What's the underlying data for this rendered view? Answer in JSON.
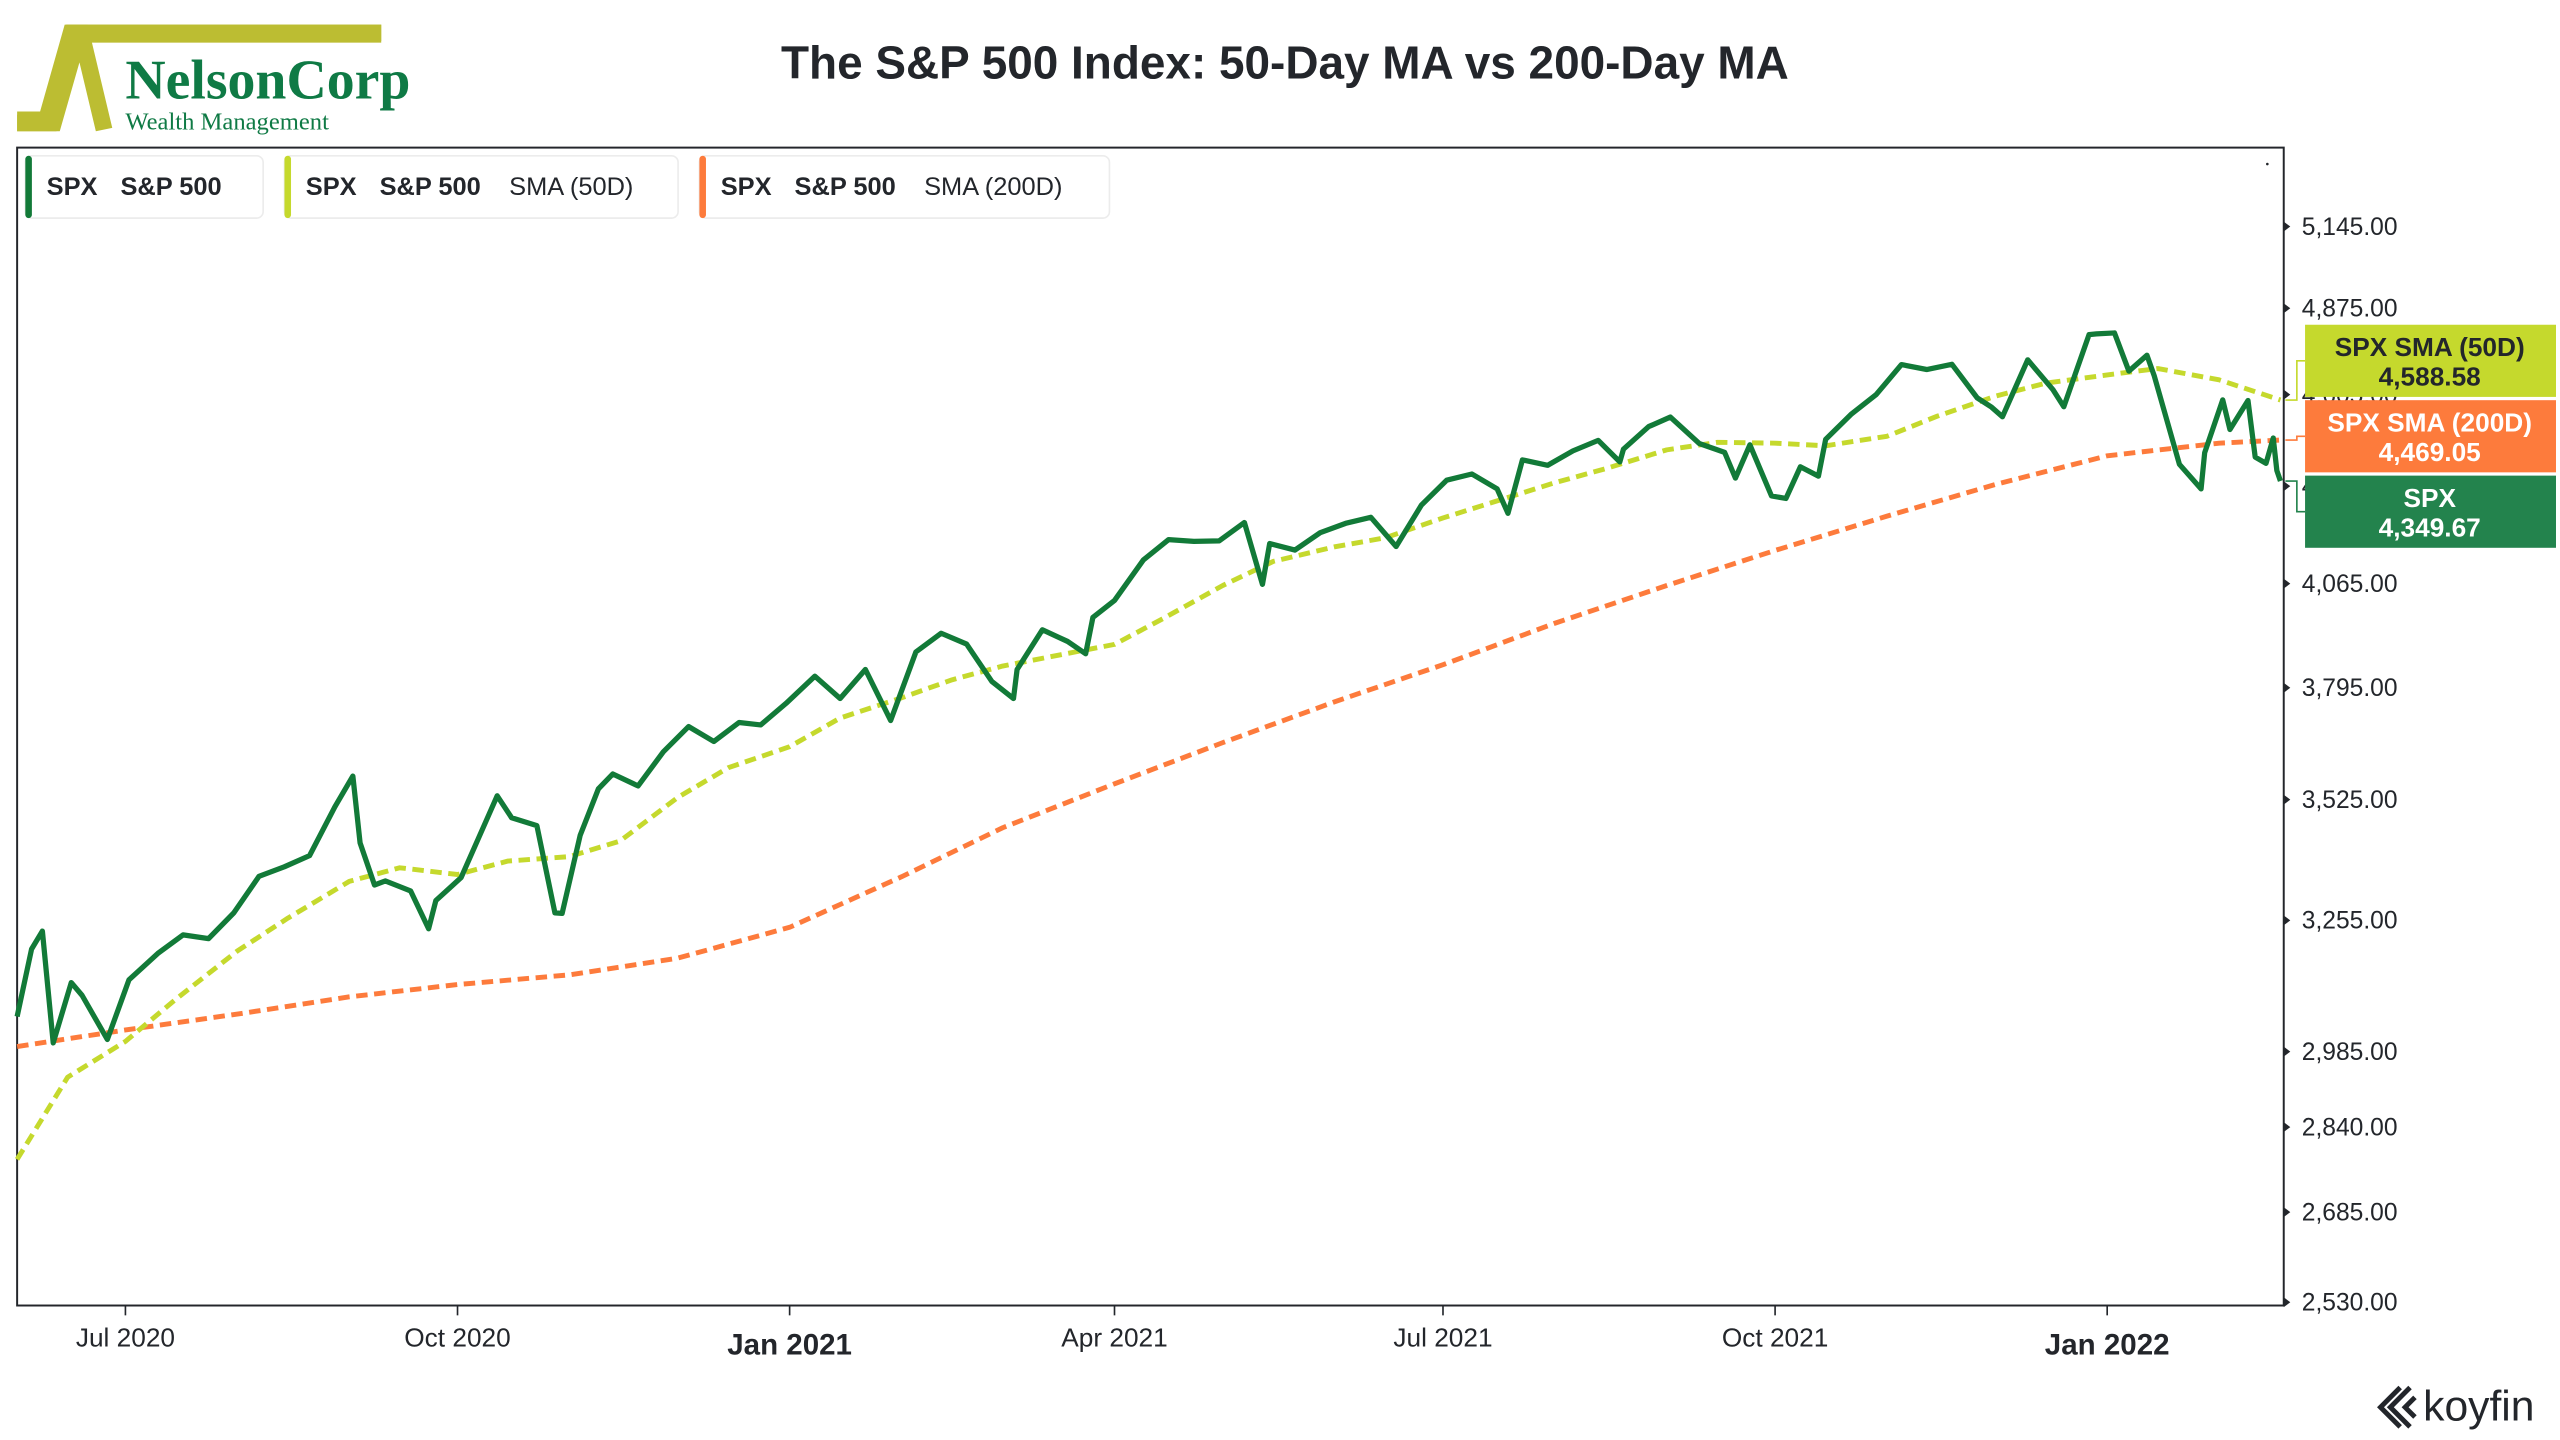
{
  "header": {
    "title": "The S&P 500 Index: 50-Day MA vs 200-Day MA",
    "logo_name": "NelsonCorp",
    "logo_tagline": "Wealth Management",
    "watermark": "koyfin"
  },
  "colors": {
    "spx": "#127a38",
    "sma50": "#c5d92d",
    "sma200": "#fd7b3c",
    "logo_olive": "#bcbd32",
    "logo_green": "#0f7a45"
  },
  "legend": [
    {
      "ticker": "SPX",
      "name": "S&P 500",
      "study": "",
      "color": "#127a38"
    },
    {
      "ticker": "SPX",
      "name": "S&P 500",
      "study": "SMA (50D)",
      "color": "#c5d92d"
    },
    {
      "ticker": "SPX",
      "name": "S&P 500",
      "study": "SMA (200D)",
      "color": "#fd7b3c"
    }
  ],
  "last_values": [
    {
      "label": "SPX SMA (50D)",
      "value": "4,588.58",
      "color": "#c5d92d",
      "text_color": "#23262b"
    },
    {
      "label": "SPX SMA (200D)",
      "value": "4,469.05",
      "color": "#fd7b3c",
      "text_color": "#ffffff"
    },
    {
      "label": "SPX",
      "value": "4,349.67",
      "color": "#23834d",
      "text_color": "#ffffff"
    }
  ],
  "chart_data": {
    "type": "line",
    "title": "The S&P 500 Index: 50-Day MA vs 200-Day MA",
    "y_scale": "log",
    "ylim": [
      2530,
      5400
    ],
    "xlim": [
      "2020-06-01",
      "2022-02-18"
    ],
    "y_ticks": [
      "2,530.00",
      "2,685.00",
      "2,840.00",
      "2,985.00",
      "3,255.00",
      "3,525.00",
      "3,795.00",
      "4,065.00",
      "4,335.00",
      "4,605.00",
      "4,875.00",
      "5,145.00"
    ],
    "x_ticks": [
      {
        "date": "2020-07-01",
        "label": "Jul 2020",
        "bold": false
      },
      {
        "date": "2020-10-01",
        "label": "Oct 2020",
        "bold": false
      },
      {
        "date": "2021-01-01",
        "label": "Jan 2021",
        "bold": true
      },
      {
        "date": "2021-04-01",
        "label": "Apr 2021",
        "bold": false
      },
      {
        "date": "2021-07-01",
        "label": "Jul 2021",
        "bold": false
      },
      {
        "date": "2021-10-01",
        "label": "Oct 2021",
        "bold": false
      },
      {
        "date": "2022-01-01",
        "label": "Jan 2022",
        "bold": true
      }
    ],
    "grid": false,
    "legend_position": "top-left",
    "series": [
      {
        "name": "SPX S&P 500",
        "style": "solid",
        "color": "#127a38",
        "points": [
          [
            "2020-06-01",
            3055
          ],
          [
            "2020-06-05",
            3194
          ],
          [
            "2020-06-08",
            3232
          ],
          [
            "2020-06-11",
            3002
          ],
          [
            "2020-06-16",
            3124
          ],
          [
            "2020-06-19",
            3098
          ],
          [
            "2020-06-26",
            3009
          ],
          [
            "2020-07-02",
            3130
          ],
          [
            "2020-07-10",
            3185
          ],
          [
            "2020-07-17",
            3224
          ],
          [
            "2020-07-24",
            3216
          ],
          [
            "2020-07-31",
            3271
          ],
          [
            "2020-08-07",
            3351
          ],
          [
            "2020-08-14",
            3372
          ],
          [
            "2020-08-21",
            3397
          ],
          [
            "2020-08-28",
            3508
          ],
          [
            "2020-09-02",
            3580
          ],
          [
            "2020-09-04",
            3426
          ],
          [
            "2020-09-08",
            3332
          ],
          [
            "2020-09-11",
            3341
          ],
          [
            "2020-09-18",
            3319
          ],
          [
            "2020-09-23",
            3237
          ],
          [
            "2020-09-25",
            3298
          ],
          [
            "2020-10-02",
            3348
          ],
          [
            "2020-10-09",
            3477
          ],
          [
            "2020-10-12",
            3534
          ],
          [
            "2020-10-16",
            3483
          ],
          [
            "2020-10-23",
            3465
          ],
          [
            "2020-10-28",
            3271
          ],
          [
            "2020-10-30",
            3270
          ],
          [
            "2020-11-04",
            3443
          ],
          [
            "2020-11-09",
            3550
          ],
          [
            "2020-11-13",
            3585
          ],
          [
            "2020-11-20",
            3557
          ],
          [
            "2020-11-27",
            3638
          ],
          [
            "2020-12-04",
            3699
          ],
          [
            "2020-12-11",
            3663
          ],
          [
            "2020-12-18",
            3709
          ],
          [
            "2020-12-24",
            3703
          ],
          [
            "2020-12-31",
            3756
          ],
          [
            "2021-01-08",
            3824
          ],
          [
            "2021-01-15",
            3768
          ],
          [
            "2021-01-22",
            3841
          ],
          [
            "2021-01-29",
            3714
          ],
          [
            "2021-02-05",
            3886
          ],
          [
            "2021-02-12",
            3934
          ],
          [
            "2021-02-19",
            3906
          ],
          [
            "2021-02-26",
            3811
          ],
          [
            "2021-03-04",
            3768
          ],
          [
            "2021-03-05",
            3841
          ],
          [
            "2021-03-12",
            3943
          ],
          [
            "2021-03-19",
            3913
          ],
          [
            "2021-03-24",
            3881
          ],
          [
            "2021-03-26",
            3975
          ],
          [
            "2021-04-01",
            4020
          ],
          [
            "2021-04-09",
            4129
          ],
          [
            "2021-04-16",
            4185
          ],
          [
            "2021-04-23",
            4180
          ],
          [
            "2021-04-30",
            4181
          ],
          [
            "2021-05-07",
            4232
          ],
          [
            "2021-05-12",
            4063
          ],
          [
            "2021-05-14",
            4174
          ],
          [
            "2021-05-21",
            4156
          ],
          [
            "2021-05-28",
            4204
          ],
          [
            "2021-06-04",
            4230
          ],
          [
            "2021-06-11",
            4247
          ],
          [
            "2021-06-18",
            4166
          ],
          [
            "2021-06-25",
            4281
          ],
          [
            "2021-07-02",
            4352
          ],
          [
            "2021-07-09",
            4370
          ],
          [
            "2021-07-16",
            4327
          ],
          [
            "2021-07-19",
            4258
          ],
          [
            "2021-07-23",
            4411
          ],
          [
            "2021-07-30",
            4395
          ],
          [
            "2021-08-06",
            4437
          ],
          [
            "2021-08-13",
            4468
          ],
          [
            "2021-08-19",
            4405
          ],
          [
            "2021-08-20",
            4442
          ],
          [
            "2021-08-27",
            4509
          ],
          [
            "2021-09-02",
            4537
          ],
          [
            "2021-09-10",
            4459
          ],
          [
            "2021-09-17",
            4433
          ],
          [
            "2021-09-20",
            4358
          ],
          [
            "2021-09-24",
            4455
          ],
          [
            "2021-09-30",
            4307
          ],
          [
            "2021-10-04",
            4300
          ],
          [
            "2021-10-08",
            4391
          ],
          [
            "2021-10-13",
            4364
          ],
          [
            "2021-10-15",
            4471
          ],
          [
            "2021-10-22",
            4545
          ],
          [
            "2021-10-29",
            4605
          ],
          [
            "2021-11-05",
            4697
          ],
          [
            "2021-11-12",
            4682
          ],
          [
            "2021-11-19",
            4698
          ],
          [
            "2021-11-26",
            4595
          ],
          [
            "2021-11-30",
            4567
          ],
          [
            "2021-12-03",
            4538
          ],
          [
            "2021-12-10",
            4712
          ],
          [
            "2021-12-17",
            4620
          ],
          [
            "2021-12-20",
            4568
          ],
          [
            "2021-12-27",
            4791
          ],
          [
            "2021-12-29",
            4793
          ],
          [
            "2022-01-03",
            4796
          ],
          [
            "2022-01-07",
            4677
          ],
          [
            "2022-01-12",
            4726
          ],
          [
            "2022-01-14",
            4663
          ],
          [
            "2022-01-21",
            4398
          ],
          [
            "2022-01-27",
            4327
          ],
          [
            "2022-01-28",
            4432
          ],
          [
            "2022-02-02",
            4589
          ],
          [
            "2022-02-04",
            4500
          ],
          [
            "2022-02-09",
            4587
          ],
          [
            "2022-02-11",
            4419
          ],
          [
            "2022-02-14",
            4401
          ],
          [
            "2022-02-16",
            4475
          ],
          [
            "2022-02-17",
            4380
          ],
          [
            "2022-02-18",
            4349.67
          ]
        ]
      },
      {
        "name": "SPX S&P 500 SMA (50D)",
        "style": "dashed",
        "color": "#c5d92d",
        "points": [
          [
            "2020-06-01",
            2780
          ],
          [
            "2020-06-15",
            2935
          ],
          [
            "2020-07-01",
            3005
          ],
          [
            "2020-07-15",
            3090
          ],
          [
            "2020-08-01",
            3190
          ],
          [
            "2020-08-15",
            3260
          ],
          [
            "2020-09-01",
            3340
          ],
          [
            "2020-09-15",
            3370
          ],
          [
            "2020-10-01",
            3355
          ],
          [
            "2020-10-15",
            3385
          ],
          [
            "2020-11-01",
            3395
          ],
          [
            "2020-11-15",
            3430
          ],
          [
            "2020-12-01",
            3530
          ],
          [
            "2020-12-15",
            3600
          ],
          [
            "2021-01-01",
            3650
          ],
          [
            "2021-01-15",
            3720
          ],
          [
            "2021-02-01",
            3770
          ],
          [
            "2021-02-15",
            3815
          ],
          [
            "2021-03-01",
            3850
          ],
          [
            "2021-03-15",
            3875
          ],
          [
            "2021-04-01",
            3905
          ],
          [
            "2021-04-15",
            3975
          ],
          [
            "2021-05-01",
            4060
          ],
          [
            "2021-05-15",
            4125
          ],
          [
            "2021-06-01",
            4165
          ],
          [
            "2021-06-15",
            4190
          ],
          [
            "2021-07-01",
            4245
          ],
          [
            "2021-07-15",
            4290
          ],
          [
            "2021-08-01",
            4345
          ],
          [
            "2021-08-15",
            4385
          ],
          [
            "2021-09-01",
            4440
          ],
          [
            "2021-09-15",
            4462
          ],
          [
            "2021-10-01",
            4460
          ],
          [
            "2021-10-15",
            4452
          ],
          [
            "2021-11-01",
            4480
          ],
          [
            "2021-11-15",
            4540
          ],
          [
            "2021-12-01",
            4600
          ],
          [
            "2021-12-15",
            4640
          ],
          [
            "2022-01-01",
            4665
          ],
          [
            "2022-01-15",
            4685
          ],
          [
            "2022-02-01",
            4650
          ],
          [
            "2022-02-18",
            4588.58
          ]
        ]
      },
      {
        "name": "SPX S&P 500 SMA (200D)",
        "style": "dashed",
        "color": "#fd7b3c",
        "points": [
          [
            "2020-06-01",
            2995
          ],
          [
            "2020-07-01",
            3028
          ],
          [
            "2020-08-01",
            3060
          ],
          [
            "2020-09-01",
            3095
          ],
          [
            "2020-10-01",
            3120
          ],
          [
            "2020-11-01",
            3140
          ],
          [
            "2020-12-01",
            3175
          ],
          [
            "2021-01-01",
            3240
          ],
          [
            "2021-02-01",
            3350
          ],
          [
            "2021-03-01",
            3460
          ],
          [
            "2021-04-01",
            3562
          ],
          [
            "2021-05-01",
            3660
          ],
          [
            "2021-06-01",
            3760
          ],
          [
            "2021-07-01",
            3853
          ],
          [
            "2021-08-01",
            3960
          ],
          [
            "2021-09-01",
            4060
          ],
          [
            "2021-10-01",
            4155
          ],
          [
            "2021-11-01",
            4250
          ],
          [
            "2021-12-01",
            4340
          ],
          [
            "2022-01-01",
            4423
          ],
          [
            "2022-02-01",
            4460
          ],
          [
            "2022-02-18",
            4469.05
          ]
        ]
      }
    ]
  }
}
